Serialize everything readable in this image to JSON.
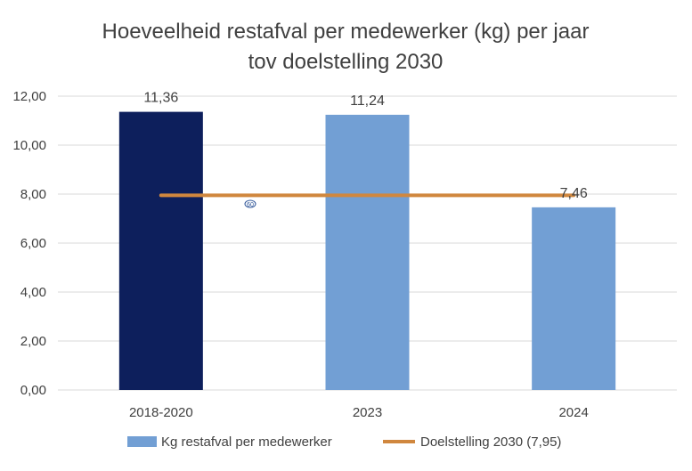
{
  "chart_data": {
    "type": "bar",
    "title": [
      "Hoeveelheid restafval per medewerker (kg) per jaar",
      "tov doelstelling 2030"
    ],
    "categories": [
      "2018-2020",
      "2023",
      "2024"
    ],
    "series": [
      {
        "name": "Kg restafval per medewerker",
        "values": [
          11.36,
          11.24,
          7.46
        ],
        "value_labels": [
          "11,36",
          "11,24",
          "7,46"
        ],
        "colors": [
          "#0d1f5c",
          "#729fd4",
          "#729fd4"
        ]
      },
      {
        "name": "Doelstelling 2030 (7,95)",
        "type": "line",
        "values": [
          7.95,
          7.95,
          7.95
        ],
        "color": "#d0873e"
      }
    ],
    "ylim": [
      0,
      12
    ],
    "yticks": [
      0,
      2,
      4,
      6,
      8,
      10,
      12
    ],
    "ytick_labels": [
      "0,00",
      "2,00",
      "4,00",
      "6,00",
      "8,00",
      "10,00",
      "12,00"
    ],
    "grid": true,
    "legend": "bottom",
    "marker_text": "60"
  }
}
